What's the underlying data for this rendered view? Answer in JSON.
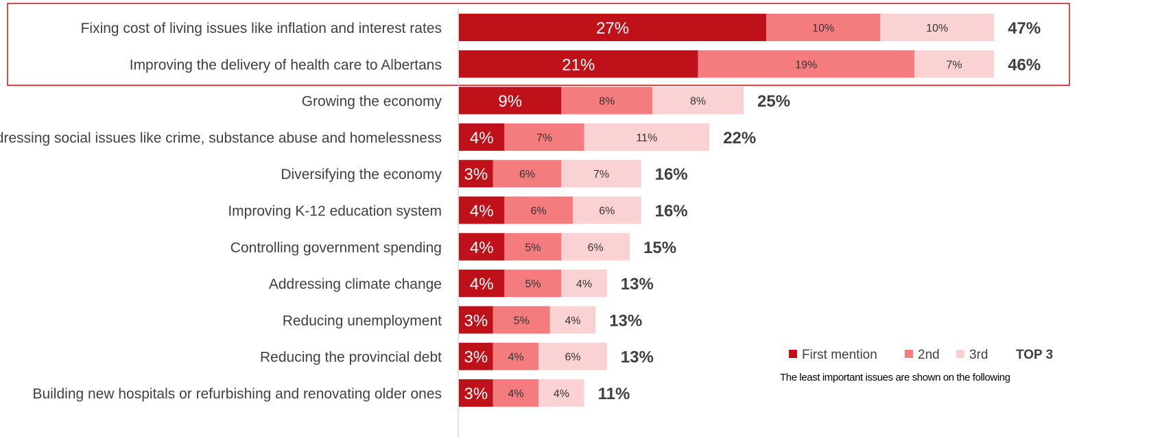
{
  "chart_data": {
    "type": "bar",
    "orientation": "horizontal",
    "stacked": true,
    "categories": [
      "Fixing cost of living issues like inflation and interest rates",
      "Improving the delivery of health care to Albertans",
      "Growing the economy",
      "Addressing social issues like crime, substance abuse and homelessness",
      "Diversifying the economy",
      "Improving K-12 education system",
      "Controlling government spending",
      "Addressing climate change",
      "Reducing unemployment",
      "Reducing the provincial debt",
      "Building new hospitals or refurbishing and renovating older ones"
    ],
    "series": [
      {
        "name": "First mention",
        "color": "#BE1119",
        "values": [
          27,
          21,
          9,
          4,
          3,
          4,
          4,
          4,
          3,
          3,
          3
        ]
      },
      {
        "name": "2nd",
        "color": "#F47C7E",
        "values": [
          10,
          19,
          8,
          7,
          6,
          6,
          5,
          5,
          5,
          4,
          4
        ]
      },
      {
        "name": "3rd",
        "color": "#FAD2D3",
        "values": [
          10,
          7,
          8,
          11,
          7,
          6,
          6,
          4,
          4,
          6,
          4
        ]
      }
    ],
    "totals": [
      47,
      46,
      25,
      22,
      16,
      16,
      15,
      13,
      13,
      13,
      11
    ],
    "total_label": "TOP 3",
    "highlighted_categories": [
      0,
      1
    ],
    "legend_position": "bottom-right",
    "footnote": "The least important issues are shown on the following",
    "grid": false
  }
}
